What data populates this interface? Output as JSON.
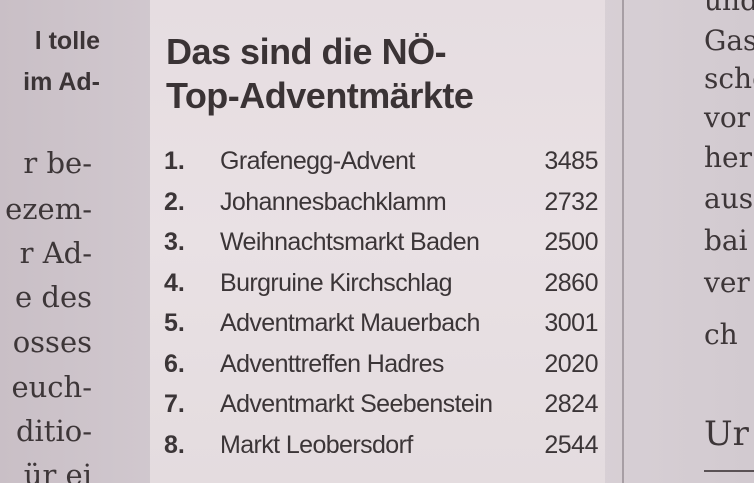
{
  "left_column": {
    "headline_lines": [
      "l tolle",
      "im Ad-"
    ],
    "body_lines": [
      "r be-",
      "ezem-",
      "r Ad-",
      "e des",
      "osses",
      "euch-",
      "ditio-",
      "ür ei"
    ]
  },
  "article": {
    "title_line1": "Das sind die NÖ-",
    "title_line2": "Top-Adventmärkte",
    "ranking": [
      {
        "rank": "1.",
        "name": "Grafenegg-Advent",
        "value": "3485"
      },
      {
        "rank": "2.",
        "name": "Johannesbachklamm",
        "value": "2732"
      },
      {
        "rank": "3.",
        "name": "Weihnachtsmarkt Baden",
        "value": "2500"
      },
      {
        "rank": "4.",
        "name": "Burgruine Kirchschlag",
        "value": "2860"
      },
      {
        "rank": "5.",
        "name": "Adventmarkt Mauerbach",
        "value": "3001"
      },
      {
        "rank": "6.",
        "name": "Adventtreffen Hadres",
        "value": "2020"
      },
      {
        "rank": "7.",
        "name": "Adventmarkt Seebenstein",
        "value": "2824"
      },
      {
        "rank": "8.",
        "name": "Markt Leobersdorf",
        "value": "2544"
      }
    ]
  },
  "right_column": {
    "body_lines": [
      "und",
      "Gasp",
      "sche",
      "vor",
      "her",
      "aus",
      "bai",
      "ver",
      "ch"
    ],
    "subhead": "Ur"
  }
}
